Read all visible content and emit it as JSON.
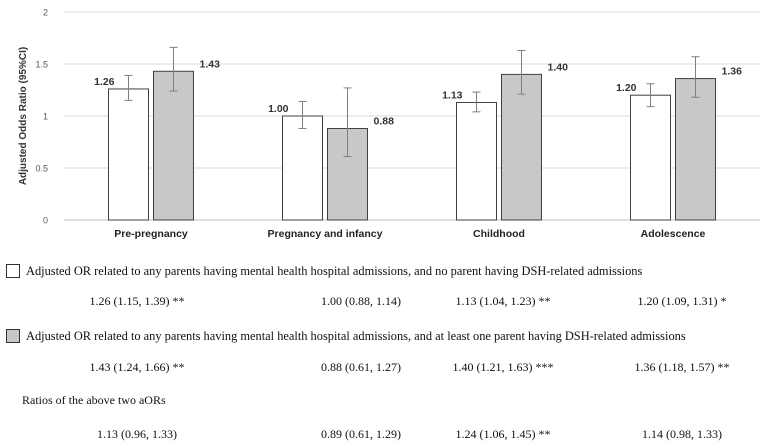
{
  "chart_data": {
    "type": "bar",
    "ylabel": "Adjusted Odds Ratio (95%CI)",
    "ylim": [
      0,
      2
    ],
    "yticks": [
      "0",
      "0.5",
      "1",
      "1.5",
      "2"
    ],
    "grid": true,
    "categories": [
      "Pre-pregnancy",
      "Pregnancy and infancy",
      "Childhood",
      "Adolescence"
    ],
    "series": [
      {
        "values": [
          1.26,
          1.0,
          1.13,
          1.2
        ],
        "labels": [
          "1.26",
          "1.00",
          "1.13",
          "1.20"
        ],
        "ci_low": [
          1.15,
          0.88,
          1.04,
          1.09
        ],
        "ci_high": [
          1.39,
          1.14,
          1.23,
          1.31
        ],
        "fill": "#ffffff"
      },
      {
        "values": [
          1.43,
          0.88,
          1.4,
          1.36
        ],
        "labels": [
          "1.43",
          "0.88",
          "1.40",
          "1.36"
        ],
        "ci_low": [
          1.24,
          0.61,
          1.21,
          1.18
        ],
        "ci_high": [
          1.66,
          1.27,
          1.63,
          1.57
        ],
        "fill": "#c8c8c8"
      }
    ]
  },
  "colors": {
    "grid": "#d9d9d9",
    "axis": "#bfbfbf",
    "bar_border": "#404040",
    "error_bar": "#7f7f7f"
  },
  "legend": {
    "row1": {
      "text": "Adjusted OR related to any parents having mental health hospital admissions, and no parent having DSH-related admissions",
      "stats": [
        "1.26 (1.15, 1.39) **",
        "1.00 (0.88, 1.14)",
        "1.13 (1.04, 1.23) **",
        "1.20 (1.09, 1.31) *"
      ]
    },
    "row2": {
      "text": "Adjusted OR related to any parents having mental health hospital admissions, and at least one parent having DSH-related admissions",
      "stats": [
        "1.43 (1.24, 1.66) **",
        "0.88 (0.61, 1.27)",
        "1.40 (1.21, 1.63) ***",
        "1.36 (1.18, 1.57) **"
      ]
    },
    "row3": {
      "label": "Ratios of the above two aORs",
      "stats": [
        "1.13 (0.96, 1.33)",
        "0.89 (0.61, 1.29)",
        "1.24 (1.06, 1.45) **",
        "1.14 (0.98, 1.33)"
      ]
    }
  }
}
